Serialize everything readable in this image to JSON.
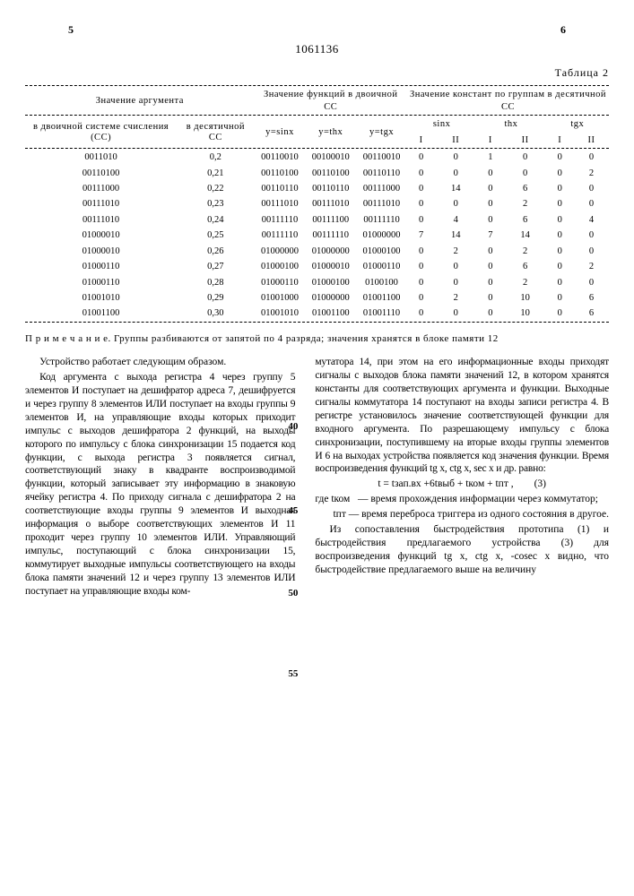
{
  "header": {
    "page_left": "5",
    "doc_number": "1061136",
    "page_right": "6"
  },
  "table": {
    "title": "Таблица 2",
    "groups": {
      "g1": "Значение  аргумента",
      "g2": "Значение  функций  в  двоичной СС",
      "g3": "Значение  констант  по группам  в  десятичной СС"
    },
    "sub": {
      "bin": "в двоичной системе счисления (СС)",
      "dec": "в десятичной СС",
      "ys": "y=sinx",
      "yt": "y=thx",
      "yg": "y=tgx",
      "s": "sinx",
      "t": "thx",
      "g": "tgx",
      "I": "I",
      "II": "II"
    },
    "rows": [
      {
        "bin": "0011010",
        "dec": "0,2",
        "ys": "00110010",
        "yt": "00100010",
        "yg": "00110010",
        "sI": "0",
        "sII": "0",
        "tI": "1",
        "tII": "0",
        "gI": "0",
        "gII": "0"
      },
      {
        "bin": "00110100",
        "dec": "0,21",
        "ys": "00110100",
        "yt": "00110100",
        "yg": "00110110",
        "sI": "0",
        "sII": "0",
        "tI": "0",
        "tII": "0",
        "gI": "0",
        "gII": "2"
      },
      {
        "bin": "00111000",
        "dec": "0,22",
        "ys": "00110110",
        "yt": "00110110",
        "yg": "00111000",
        "sI": "0",
        "sII": "14",
        "tI": "0",
        "tII": "6",
        "gI": "0",
        "gII": "0"
      },
      {
        "bin": "00111010",
        "dec": "0,23",
        "ys": "00111010",
        "yt": "00111010",
        "yg": "00111010",
        "sI": "0",
        "sII": "0",
        "tI": "0",
        "tII": "2",
        "gI": "0",
        "gII": "0"
      },
      {
        "bin": "00111010",
        "dec": "0,24",
        "ys": "00111110",
        "yt": "00111100",
        "yg": "00111110",
        "sI": "0",
        "sII": "4",
        "tI": "0",
        "tII": "6",
        "gI": "0",
        "gII": "4"
      },
      {
        "bin": "01000010",
        "dec": "0,25",
        "ys": "00111110",
        "yt": "00111110",
        "yg": "01000000",
        "sI": "7",
        "sII": "14",
        "tI": "7",
        "tII": "14",
        "gI": "0",
        "gII": "0"
      },
      {
        "bin": "01000010",
        "dec": "0,26",
        "ys": "01000000",
        "yt": "01000000",
        "yg": "01000100",
        "sI": "0",
        "sII": "2",
        "tI": "0",
        "tII": "2",
        "gI": "0",
        "gII": "0"
      },
      {
        "bin": "01000110",
        "dec": "0,27",
        "ys": "01000100",
        "yt": "01000010",
        "yg": "01000110",
        "sI": "0",
        "sII": "0",
        "tI": "0",
        "tII": "6",
        "gI": "0",
        "gII": "2"
      },
      {
        "bin": "01000110",
        "dec": "0,28",
        "ys": "01000110",
        "yt": "01000100",
        "yg": "0100100",
        "sI": "0",
        "sII": "0",
        "tI": "0",
        "tII": "2",
        "gI": "0",
        "gII": "0"
      },
      {
        "bin": "01001010",
        "dec": "0,29",
        "ys": "01001000",
        "yt": "01000000",
        "yg": "01001100",
        "sI": "0",
        "sII": "2",
        "tI": "0",
        "tII": "10",
        "gI": "0",
        "gII": "6"
      },
      {
        "bin": "01001100",
        "dec": "0,30",
        "ys": "01001010",
        "yt": "01001100",
        "yg": "01001110",
        "sI": "0",
        "sII": "0",
        "tI": "0",
        "tII": "10",
        "gI": "0",
        "gII": "6"
      }
    ],
    "note": "П р и м е ч а н и е.  Группы  разбиваются  от  запятой  по  4  разряда;  значения  хранятся  в  блоке памяти 12"
  },
  "text": {
    "left": [
      "Устройство работает следующим образом.",
      "Код аргумента с выхода регистра 4 через группу 5 элементов И поступает на дешифратор адреса 7, дешифруется и через группу 8 элементов ИЛИ поступает на входы группы 9 элементов И, на управляющие входы которых приходит импульс с выходов дешифратора 2 функций, на выходы которого по импульсу с блока синхронизации 15 подается код функции, с выхода регистра 3 появляется сигнал, соответствующий знаку в квадранте воспроизводимой функции, который записывает эту информацию в знаковую ячейку регистра 4. По приходу сигнала с дешифратора 2 на соответствующие входы группы 9 элементов И выходная информация о выборе соответствующих элементов И 11 проходит через группу 10 элементов ИЛИ. Управляющий импульс, поступающий с блока синхронизации 15, коммутирует выходные импульсы соответствующего на входы блока памяти значений 12 и через группу 13 элементов ИЛИ поступает на управляющие входы ком-"
    ],
    "right": [
      "мутатора 14, при этом на его информационные входы приходят сигналы с выходов блока памяти значений 12, в котором хранятся константы для соответствующих аргумента и функции. Выходные сигналы коммутатора 14 поступают на входы записи регистра 4. В регистре установилось значение соответствующей функции для входного аргумента. По разрешающему импульсу с блока синхронизации, поступившему на вторые входы группы элементов И 6 на выходах устройства появляется код значения функции. Время воспроизведения функций tg x, ctg x, sec x и др. равно:",
      "t = tзап.вх +6tвыб + tком + tпт ,        (3)",
      "где tком   — время прохождения информации через коммутатор;",
      "       tпт — время переброса триггера из одного состояния в другое.",
      "Из сопоставления быстродействия прототипа (1) и быстродействия предлагаемого устройства (3) для воспроизведения функций tg x,  ctg x, -cosec x видно, что быстродействие предлагаемого выше на величину"
    ],
    "line_numbers": {
      "n40": "40",
      "n45": "45",
      "n50": "50",
      "n55": "55"
    }
  }
}
